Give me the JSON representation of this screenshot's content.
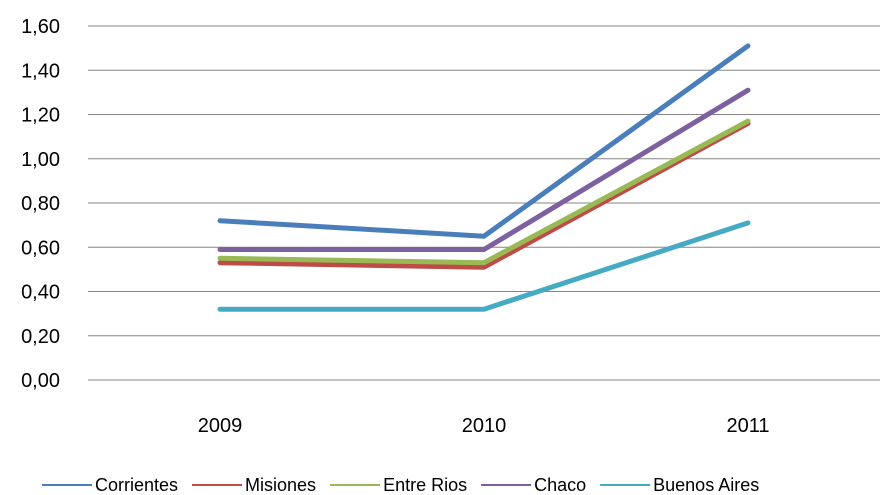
{
  "chart_data": {
    "type": "line",
    "title": "",
    "xlabel": "",
    "ylabel": "",
    "categories": [
      "2009",
      "2010",
      "2011"
    ],
    "ylim": [
      0,
      1.6
    ],
    "yticks": [
      "0,00",
      "0,20",
      "0,40",
      "0,60",
      "0,80",
      "1,00",
      "1,20",
      "1,40",
      "1,60"
    ],
    "grid": true,
    "legend_position": "bottom",
    "series": [
      {
        "name": "Corrientes",
        "color": "#4a7ebb",
        "values": [
          0.72,
          0.65,
          1.51
        ]
      },
      {
        "name": "Misiones",
        "color": "#be4b48",
        "values": [
          0.53,
          0.51,
          1.16
        ]
      },
      {
        "name": "Entre Rios",
        "color": "#98b954",
        "values": [
          0.55,
          0.53,
          1.17
        ]
      },
      {
        "name": "Chaco",
        "color": "#7d60a0",
        "values": [
          0.59,
          0.59,
          1.31
        ]
      },
      {
        "name": "Buenos Aires",
        "color": "#46aac5",
        "values": [
          0.32,
          0.32,
          0.71
        ]
      }
    ]
  }
}
